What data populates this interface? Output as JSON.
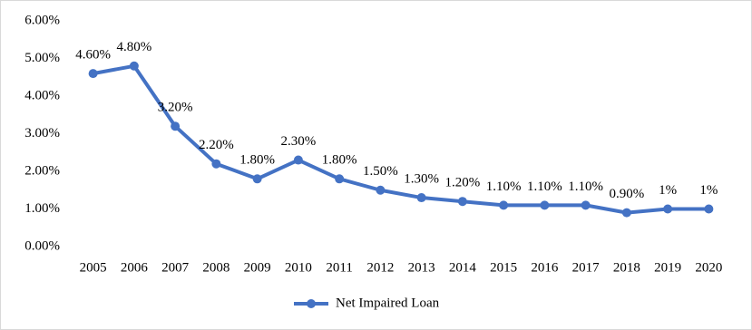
{
  "chart_data": {
    "type": "line",
    "categories": [
      "2005",
      "2006",
      "2007",
      "2008",
      "2009",
      "2010",
      "2011",
      "2012",
      "2013",
      "2014",
      "2015",
      "2016",
      "2017",
      "2018",
      "2019",
      "2020"
    ],
    "series": [
      {
        "name": "Net Impaired Loan",
        "color": "#4472c4",
        "values": [
          4.6,
          4.8,
          3.2,
          2.2,
          1.8,
          2.3,
          1.8,
          1.5,
          1.3,
          1.2,
          1.1,
          1.1,
          1.1,
          0.9,
          1,
          1
        ],
        "value_labels": [
          "4.60%",
          "4.80%",
          "3.20%",
          "2.20%",
          "1.80%",
          "2.30%",
          "1.80%",
          "1.50%",
          "1.30%",
          "1.20%",
          "1.10%",
          "1.10%",
          "1.10%",
          "0.90%",
          "1%",
          "1%"
        ]
      }
    ],
    "ylim": [
      0,
      6
    ],
    "yticks": [
      {
        "value": 0,
        "label": "0.00%"
      },
      {
        "value": 1,
        "label": "1.00%"
      },
      {
        "value": 2,
        "label": "2.00%"
      },
      {
        "value": 3,
        "label": "3.00%"
      },
      {
        "value": 4,
        "label": "4.00%"
      },
      {
        "value": 5,
        "label": "5.00%"
      },
      {
        "value": 6,
        "label": "6.00%"
      }
    ],
    "grid": false,
    "legend": "bottom"
  }
}
